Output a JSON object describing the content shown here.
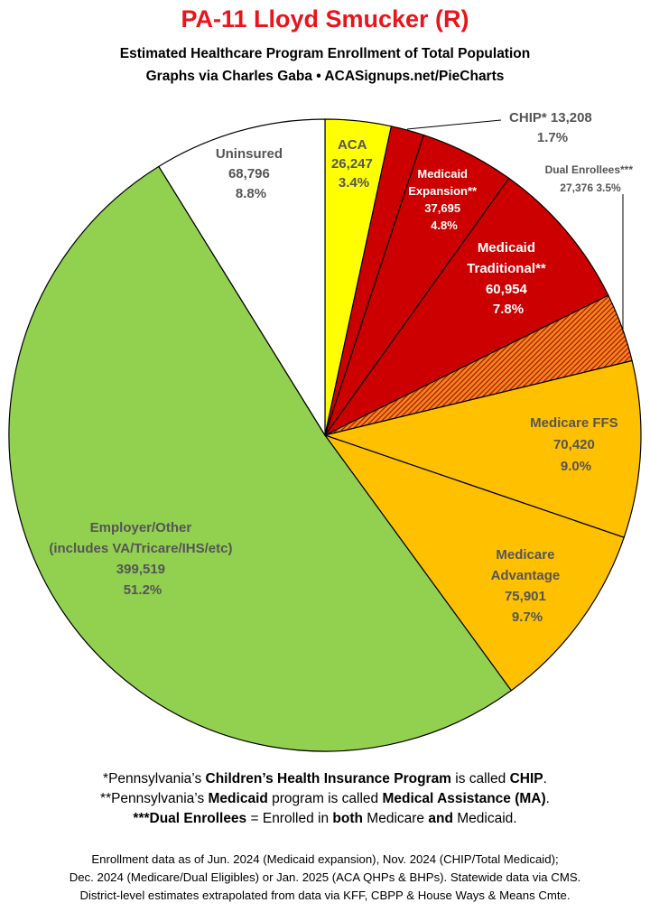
{
  "title": "PA-11 Lloyd Smucker (R)",
  "subtitle_line1": "Estimated Healthcare Program Enrollment of Total Population",
  "subtitle_line2": "Graphs via Charles Gaba  •  ACASignups.net/PieCharts",
  "chart_data": {
    "type": "pie",
    "title": "PA-11 Lloyd Smucker (R)",
    "start": "12 o'clock, clockwise",
    "slices": [
      {
        "label": "ACA",
        "value": 26247,
        "percent": "3.4%",
        "color": "#ffff00",
        "text_color": "#555555"
      },
      {
        "label": "CHIP*",
        "value": 13208,
        "percent": "1.7%",
        "color": "#cc0000",
        "text_color": "#555555"
      },
      {
        "label": "Medicaid Expansion**",
        "value": 37695,
        "percent": "4.8%",
        "color": "#cc0000",
        "text_color": "#ffffff"
      },
      {
        "label": "Medicaid Traditional**",
        "value": 60954,
        "percent": "7.8%",
        "color": "#cc0000",
        "text_color": "#ffffff"
      },
      {
        "label": "Dual Enrollees***",
        "value": 27376,
        "percent": "3.5%",
        "color": "#d04a00",
        "pattern": "hatched",
        "text_color": "#555555"
      },
      {
        "label": "Medicare FFS",
        "value": 70420,
        "percent": "9.0%",
        "color": "#ffc000",
        "text_color": "#555555"
      },
      {
        "label": "Medicare Advantage",
        "value": 75901,
        "percent": "9.7%",
        "color": "#ffc000",
        "text_color": "#555555"
      },
      {
        "label": "Employer/Other (includes VA/Tricare/IHS/etc)",
        "value": 399519,
        "percent": "51.2%",
        "color": "#92d050",
        "text_color": "#555555"
      },
      {
        "label": "Uninsured",
        "value": 68796,
        "percent": "8.8%",
        "color": "#ffffff",
        "text_color": "#555555"
      }
    ]
  },
  "labels": {
    "aca": [
      "ACA",
      "26,247",
      "3.4%"
    ],
    "chip": [
      "CHIP* 13,208",
      "1.7%"
    ],
    "med_exp": [
      "Medicaid",
      "Expansion**",
      "37,695",
      "4.8%"
    ],
    "dual": [
      "Dual Enrollees***",
      "27,376 3.5%"
    ],
    "med_trad": [
      "Medicaid",
      "Traditional**",
      "60,954",
      "7.8%"
    ],
    "medicare_ffs": [
      "Medicare FFS",
      "70,420",
      "9.0%"
    ],
    "medicare_adv": [
      "Medicare",
      "Advantage",
      "75,901",
      "9.7%"
    ],
    "employer": [
      "Employer/Other",
      "(includes VA/Tricare/IHS/etc)",
      "399,519",
      "51.2%"
    ],
    "uninsured": [
      "Uninsured",
      "68,796",
      "8.8%"
    ]
  },
  "notes": {
    "n1_a": "*Pennsylvania’s ",
    "n1_b": "Children’s Health Insurance Program",
    "n1_c": " is called ",
    "n1_d": "CHIP",
    "n1_e": ".",
    "n2_a": "**Pennsylvania’s ",
    "n2_b": "Medicaid",
    "n2_c": " program is called ",
    "n2_d": "Medical Assistance (MA)",
    "n2_e": ".",
    "n3_a": "***Dual Enrollees",
    "n3_b": " = Enrolled in ",
    "n3_c": "both",
    "n3_d": " Medicare ",
    "n3_e": "and",
    "n3_f": " Medicaid."
  },
  "source": {
    "line1": "Enrollment data as of Jun. 2024 (Medicaid expansion), Nov. 2024 (CHIP/Total Medicaid);",
    "line2": "Dec. 2024 (Medicare/Dual Eligibles) or Jan. 2025 (ACA QHPs & BHPs). Statewide data via CMS.",
    "line3": "District-level estimates extrapolated from data via KFF, CBPP & House Ways & Means Cmte."
  }
}
